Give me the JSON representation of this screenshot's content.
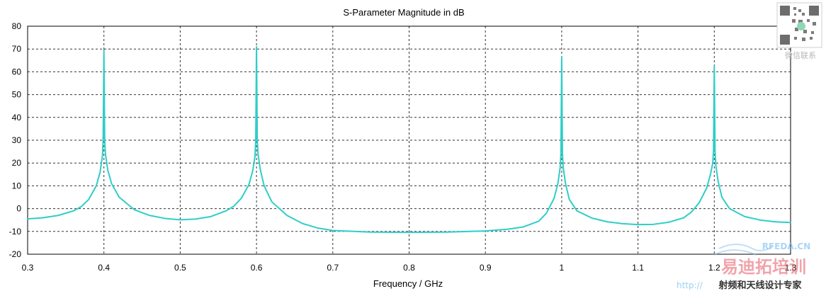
{
  "chart_data": {
    "type": "line",
    "title": "S-Parameter Magnitude in dB",
    "xlabel": "Frequency / GHz",
    "ylabel": "",
    "xlim": [
      0.3,
      1.3
    ],
    "ylim": [
      -20,
      80
    ],
    "xticks": [
      "0.3",
      "0.4",
      "0.5",
      "0.6",
      "0.7",
      "0.8",
      "0.9",
      "1",
      "1.1",
      "1.2",
      "1.3"
    ],
    "yticks": [
      "-20",
      "-10",
      "0",
      "10",
      "20",
      "30",
      "40",
      "50",
      "60",
      "70",
      "80"
    ],
    "grid": true,
    "series": [
      {
        "color": "#2ecec8",
        "x": [
          0.3,
          0.32,
          0.34,
          0.36,
          0.37,
          0.38,
          0.39,
          0.395,
          0.398,
          0.399,
          0.4,
          0.401,
          0.402,
          0.405,
          0.41,
          0.42,
          0.44,
          0.46,
          0.48,
          0.5,
          0.52,
          0.54,
          0.56,
          0.57,
          0.58,
          0.59,
          0.595,
          0.598,
          0.599,
          0.6,
          0.601,
          0.602,
          0.605,
          0.61,
          0.62,
          0.64,
          0.66,
          0.68,
          0.7,
          0.75,
          0.8,
          0.85,
          0.9,
          0.93,
          0.95,
          0.97,
          0.98,
          0.99,
          0.995,
          0.998,
          0.999,
          1.0,
          1.001,
          1.002,
          1.005,
          1.01,
          1.02,
          1.04,
          1.06,
          1.08,
          1.1,
          1.12,
          1.14,
          1.16,
          1.17,
          1.18,
          1.19,
          1.195,
          1.198,
          1.199,
          1.2,
          1.201,
          1.202,
          1.205,
          1.21,
          1.22,
          1.24,
          1.26,
          1.28,
          1.3
        ],
        "y": [
          -4.5,
          -4.0,
          -3.0,
          -1.0,
          0.8,
          4.0,
          10.0,
          16.0,
          23.0,
          30.0,
          69.5,
          30.0,
          24.0,
          17.0,
          11.0,
          5.0,
          -0.5,
          -3.0,
          -4.3,
          -4.9,
          -4.6,
          -3.5,
          -1.0,
          1.0,
          4.5,
          10.5,
          16.5,
          23.0,
          30.0,
          71.0,
          30.0,
          24.0,
          17.0,
          10.0,
          3.0,
          -3.0,
          -6.5,
          -8.5,
          -9.6,
          -10.3,
          -10.4,
          -10.3,
          -9.8,
          -9.0,
          -8.0,
          -5.5,
          -2.0,
          4.5,
          11.0,
          18.0,
          24.0,
          66.5,
          24.0,
          18.0,
          11.0,
          4.0,
          -1.0,
          -4.2,
          -5.8,
          -6.6,
          -7.0,
          -6.9,
          -6.0,
          -4.0,
          -1.5,
          2.5,
          9.0,
          15.0,
          20.0,
          25.5,
          62.5,
          25.5,
          19.0,
          12.0,
          5.0,
          0.0,
          -3.5,
          -5.0,
          -5.8,
          -6.1
        ]
      }
    ]
  },
  "watermark": {
    "contact_label": "微信联系",
    "site_text": "RFEDA.CN",
    "brand_cn": "易迪拓培训",
    "slogan": "射频和天线设计专家",
    "url_fragment": "http://"
  }
}
